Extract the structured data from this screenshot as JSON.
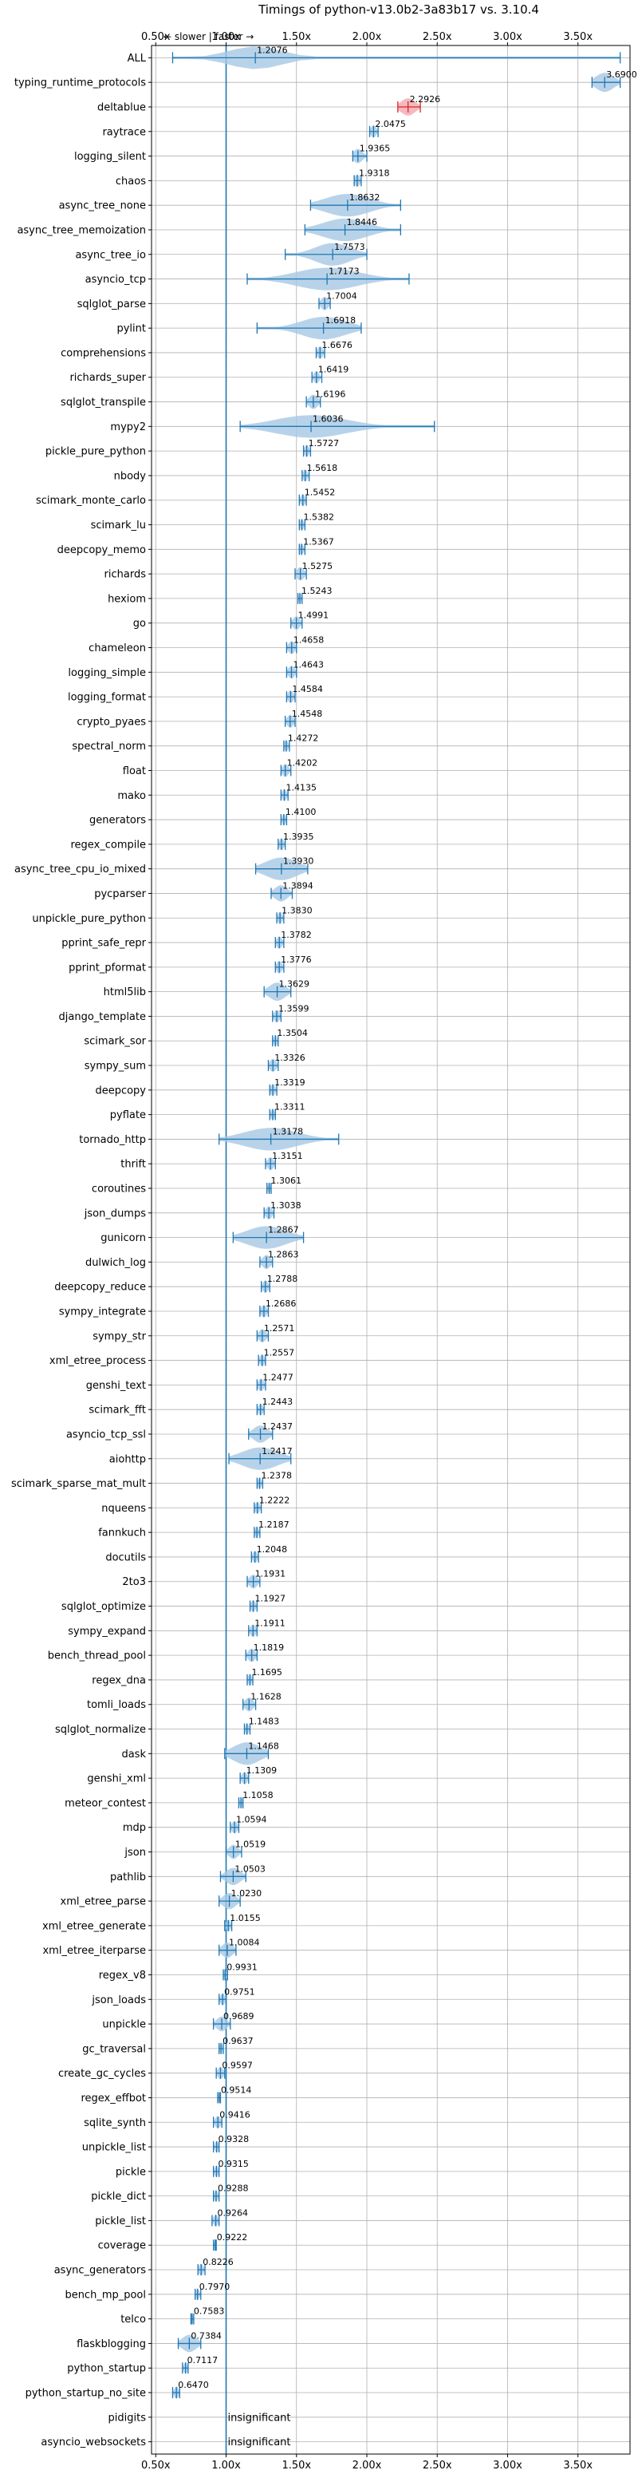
{
  "chart_data": {
    "type": "violin",
    "title": "Timings of python-v13.0b2-3a83b17 vs. 3.10.4",
    "xlabel": "",
    "ylabel": "",
    "direction_note": "← slower | faster →",
    "xlim": [
      0.47,
      3.87
    ],
    "xticks": [
      0.5,
      1.0,
      1.5,
      2.0,
      2.5,
      3.0,
      3.5
    ],
    "xtick_labels": [
      "0.50x",
      "1.00x",
      "1.50x",
      "2.00x",
      "2.50x",
      "3.00x",
      "3.50x"
    ],
    "reference_line": 1.0,
    "grid": true,
    "insignificant_label": "insignificant",
    "benchmarks": [
      {
        "name": "ALL",
        "value": 1.2076,
        "label": "1.2076",
        "min": 0.62,
        "max": 3.8,
        "spread": 0.3
      },
      {
        "name": "typing_runtime_protocols",
        "value": 3.69,
        "label": "3.6900",
        "min": 3.6,
        "max": 3.8,
        "spread": 0.1
      },
      {
        "name": "deltablue",
        "value": 2.2926,
        "label": "2.2926",
        "min": 2.22,
        "max": 2.38,
        "spread": 0.08
      },
      {
        "name": "raytrace",
        "value": 2.0475,
        "label": "2.0475",
        "min": 2.02,
        "max": 2.08,
        "spread": 0.03
      },
      {
        "name": "logging_silent",
        "value": 1.9365,
        "label": "1.9365",
        "min": 1.9,
        "max": 2.0,
        "spread": 0.05
      },
      {
        "name": "chaos",
        "value": 1.9318,
        "label": "1.9318",
        "min": 1.91,
        "max": 1.96,
        "spread": 0.03
      },
      {
        "name": "async_tree_none",
        "value": 1.8632,
        "label": "1.8632",
        "min": 1.6,
        "max": 2.24,
        "spread": 0.25
      },
      {
        "name": "async_tree_memoization",
        "value": 1.8446,
        "label": "1.8446",
        "min": 1.56,
        "max": 2.24,
        "spread": 0.25
      },
      {
        "name": "async_tree_io",
        "value": 1.7573,
        "label": "1.7573",
        "min": 1.42,
        "max": 2.0,
        "spread": 0.2
      },
      {
        "name": "asyncio_tcp",
        "value": 1.7173,
        "label": "1.7173",
        "min": 1.15,
        "max": 2.3,
        "spread": 0.35
      },
      {
        "name": "sqlglot_parse",
        "value": 1.7004,
        "label": "1.7004",
        "min": 1.66,
        "max": 1.74,
        "spread": 0.04
      },
      {
        "name": "pylint",
        "value": 1.6918,
        "label": "1.6918",
        "min": 1.22,
        "max": 1.96,
        "spread": 0.25
      },
      {
        "name": "comprehensions",
        "value": 1.6676,
        "label": "1.6676",
        "min": 1.64,
        "max": 1.7,
        "spread": 0.03
      },
      {
        "name": "richards_super",
        "value": 1.6419,
        "label": "1.6419",
        "min": 1.61,
        "max": 1.68,
        "spread": 0.03
      },
      {
        "name": "sqlglot_transpile",
        "value": 1.6196,
        "label": "1.6196",
        "min": 1.57,
        "max": 1.67,
        "spread": 0.05
      },
      {
        "name": "mypy2",
        "value": 1.6036,
        "label": "1.6036",
        "min": 1.1,
        "max": 2.48,
        "spread": 0.4
      },
      {
        "name": "pickle_pure_python",
        "value": 1.5727,
        "label": "1.5727",
        "min": 1.55,
        "max": 1.6,
        "spread": 0.025
      },
      {
        "name": "nbody",
        "value": 1.5618,
        "label": "1.5618",
        "min": 1.54,
        "max": 1.59,
        "spread": 0.025
      },
      {
        "name": "scimark_monte_carlo",
        "value": 1.5452,
        "label": "1.5452",
        "min": 1.52,
        "max": 1.57,
        "spread": 0.025
      },
      {
        "name": "scimark_lu",
        "value": 1.5382,
        "label": "1.5382",
        "min": 1.52,
        "max": 1.56,
        "spread": 0.02
      },
      {
        "name": "deepcopy_memo",
        "value": 1.5367,
        "label": "1.5367",
        "min": 1.52,
        "max": 1.56,
        "spread": 0.02
      },
      {
        "name": "richards",
        "value": 1.5275,
        "label": "1.5275",
        "min": 1.49,
        "max": 1.57,
        "spread": 0.04
      },
      {
        "name": "hexiom",
        "value": 1.5243,
        "label": "1.5243",
        "min": 1.51,
        "max": 1.54,
        "spread": 0.015
      },
      {
        "name": "go",
        "value": 1.4991,
        "label": "1.4991",
        "min": 1.46,
        "max": 1.54,
        "spread": 0.04
      },
      {
        "name": "chameleon",
        "value": 1.4658,
        "label": "1.4658",
        "min": 1.43,
        "max": 1.5,
        "spread": 0.035
      },
      {
        "name": "logging_simple",
        "value": 1.4643,
        "label": "1.4643",
        "min": 1.43,
        "max": 1.5,
        "spread": 0.035
      },
      {
        "name": "logging_format",
        "value": 1.4584,
        "label": "1.4584",
        "min": 1.43,
        "max": 1.49,
        "spread": 0.03
      },
      {
        "name": "crypto_pyaes",
        "value": 1.4548,
        "label": "1.4548",
        "min": 1.42,
        "max": 1.49,
        "spread": 0.035
      },
      {
        "name": "spectral_norm",
        "value": 1.4272,
        "label": "1.4272",
        "min": 1.41,
        "max": 1.45,
        "spread": 0.02
      },
      {
        "name": "float",
        "value": 1.4202,
        "label": "1.4202",
        "min": 1.39,
        "max": 1.46,
        "spread": 0.035
      },
      {
        "name": "mako",
        "value": 1.4135,
        "label": "1.4135",
        "min": 1.39,
        "max": 1.44,
        "spread": 0.025
      },
      {
        "name": "generators",
        "value": 1.41,
        "label": "1.4100",
        "min": 1.39,
        "max": 1.43,
        "spread": 0.02
      },
      {
        "name": "regex_compile",
        "value": 1.3935,
        "label": "1.3935",
        "min": 1.37,
        "max": 1.42,
        "spread": 0.025
      },
      {
        "name": "async_tree_cpu_io_mixed",
        "value": 1.393,
        "label": "1.3930",
        "min": 1.21,
        "max": 1.58,
        "spread": 0.18
      },
      {
        "name": "pycparser",
        "value": 1.3894,
        "label": "1.3894",
        "min": 1.32,
        "max": 1.47,
        "spread": 0.07
      },
      {
        "name": "unpickle_pure_python",
        "value": 1.383,
        "label": "1.3830",
        "min": 1.36,
        "max": 1.41,
        "spread": 0.025
      },
      {
        "name": "pprint_safe_repr",
        "value": 1.3782,
        "label": "1.3782",
        "min": 1.35,
        "max": 1.41,
        "spread": 0.03
      },
      {
        "name": "pprint_pformat",
        "value": 1.3776,
        "label": "1.3776",
        "min": 1.35,
        "max": 1.41,
        "spread": 0.03
      },
      {
        "name": "html5lib",
        "value": 1.3629,
        "label": "1.3629",
        "min": 1.27,
        "max": 1.46,
        "spread": 0.09
      },
      {
        "name": "django_template",
        "value": 1.3599,
        "label": "1.3599",
        "min": 1.33,
        "max": 1.39,
        "spread": 0.03
      },
      {
        "name": "scimark_sor",
        "value": 1.3504,
        "label": "1.3504",
        "min": 1.33,
        "max": 1.37,
        "spread": 0.02
      },
      {
        "name": "sympy_sum",
        "value": 1.3326,
        "label": "1.3326",
        "min": 1.3,
        "max": 1.37,
        "spread": 0.035
      },
      {
        "name": "deepcopy",
        "value": 1.3319,
        "label": "1.3319",
        "min": 1.31,
        "max": 1.36,
        "spread": 0.025
      },
      {
        "name": "pyflate",
        "value": 1.3311,
        "label": "1.3311",
        "min": 1.31,
        "max": 1.35,
        "spread": 0.02
      },
      {
        "name": "tornado_http",
        "value": 1.3178,
        "label": "1.3178",
        "min": 0.95,
        "max": 1.8,
        "spread": 0.3
      },
      {
        "name": "thrift",
        "value": 1.3151,
        "label": "1.3151",
        "min": 1.28,
        "max": 1.35,
        "spread": 0.035
      },
      {
        "name": "coroutines",
        "value": 1.3061,
        "label": "1.3061",
        "min": 1.29,
        "max": 1.32,
        "spread": 0.015
      },
      {
        "name": "json_dumps",
        "value": 1.3038,
        "label": "1.3038",
        "min": 1.27,
        "max": 1.34,
        "spread": 0.035
      },
      {
        "name": "gunicorn",
        "value": 1.2867,
        "label": "1.2867",
        "min": 1.05,
        "max": 1.55,
        "spread": 0.22
      },
      {
        "name": "dulwich_log",
        "value": 1.2863,
        "label": "1.2863",
        "min": 1.24,
        "max": 1.33,
        "spread": 0.045
      },
      {
        "name": "deepcopy_reduce",
        "value": 1.2788,
        "label": "1.2788",
        "min": 1.25,
        "max": 1.31,
        "spread": 0.03
      },
      {
        "name": "sympy_integrate",
        "value": 1.2686,
        "label": "1.2686",
        "min": 1.24,
        "max": 1.3,
        "spread": 0.03
      },
      {
        "name": "sympy_str",
        "value": 1.2571,
        "label": "1.2571",
        "min": 1.22,
        "max": 1.3,
        "spread": 0.04
      },
      {
        "name": "xml_etree_process",
        "value": 1.2557,
        "label": "1.2557",
        "min": 1.23,
        "max": 1.28,
        "spread": 0.025
      },
      {
        "name": "genshi_text",
        "value": 1.2477,
        "label": "1.2477",
        "min": 1.22,
        "max": 1.28,
        "spread": 0.03
      },
      {
        "name": "scimark_fft",
        "value": 1.2443,
        "label": "1.2443",
        "min": 1.22,
        "max": 1.27,
        "spread": 0.025
      },
      {
        "name": "asyncio_tcp_ssl",
        "value": 1.2437,
        "label": "1.2437",
        "min": 1.16,
        "max": 1.33,
        "spread": 0.08
      },
      {
        "name": "aiohttp",
        "value": 1.2417,
        "label": "1.2417",
        "min": 1.02,
        "max": 1.46,
        "spread": 0.2
      },
      {
        "name": "scimark_sparse_mat_mult",
        "value": 1.2378,
        "label": "1.2378",
        "min": 1.22,
        "max": 1.26,
        "spread": 0.02
      },
      {
        "name": "nqueens",
        "value": 1.2222,
        "label": "1.2222",
        "min": 1.2,
        "max": 1.25,
        "spread": 0.025
      },
      {
        "name": "fannkuch",
        "value": 1.2187,
        "label": "1.2187",
        "min": 1.2,
        "max": 1.24,
        "spread": 0.02
      },
      {
        "name": "docutils",
        "value": 1.2048,
        "label": "1.2048",
        "min": 1.18,
        "max": 1.23,
        "spread": 0.025
      },
      {
        "name": "2to3",
        "value": 1.1931,
        "label": "1.1931",
        "min": 1.15,
        "max": 1.24,
        "spread": 0.045
      },
      {
        "name": "sqlglot_optimize",
        "value": 1.1927,
        "label": "1.1927",
        "min": 1.17,
        "max": 1.22,
        "spread": 0.025
      },
      {
        "name": "sympy_expand",
        "value": 1.1911,
        "label": "1.1911",
        "min": 1.16,
        "max": 1.22,
        "spread": 0.03
      },
      {
        "name": "bench_thread_pool",
        "value": 1.1819,
        "label": "1.1819",
        "min": 1.14,
        "max": 1.22,
        "spread": 0.04
      },
      {
        "name": "regex_dna",
        "value": 1.1695,
        "label": "1.1695",
        "min": 1.15,
        "max": 1.19,
        "spread": 0.02
      },
      {
        "name": "tomli_loads",
        "value": 1.1628,
        "label": "1.1628",
        "min": 1.12,
        "max": 1.21,
        "spread": 0.045
      },
      {
        "name": "sqlglot_normalize",
        "value": 1.1483,
        "label": "1.1483",
        "min": 1.13,
        "max": 1.17,
        "spread": 0.02
      },
      {
        "name": "dask",
        "value": 1.1468,
        "label": "1.1468",
        "min": 0.99,
        "max": 1.3,
        "spread": 0.15
      },
      {
        "name": "genshi_xml",
        "value": 1.1309,
        "label": "1.1309",
        "min": 1.1,
        "max": 1.16,
        "spread": 0.03
      },
      {
        "name": "meteor_contest",
        "value": 1.1058,
        "label": "1.1058",
        "min": 1.09,
        "max": 1.12,
        "spread": 0.015
      },
      {
        "name": "mdp",
        "value": 1.0594,
        "label": "1.0594",
        "min": 1.03,
        "max": 1.09,
        "spread": 0.03
      },
      {
        "name": "json",
        "value": 1.0519,
        "label": "1.0519",
        "min": 1.0,
        "max": 1.11,
        "spread": 0.05
      },
      {
        "name": "pathlib",
        "value": 1.0503,
        "label": "1.0503",
        "min": 0.96,
        "max": 1.14,
        "spread": 0.08
      },
      {
        "name": "xml_etree_parse",
        "value": 1.023,
        "label": "1.0230",
        "min": 0.95,
        "max": 1.1,
        "spread": 0.07
      },
      {
        "name": "xml_etree_generate",
        "value": 1.0155,
        "label": "1.0155",
        "min": 0.99,
        "max": 1.04,
        "spread": 0.025
      },
      {
        "name": "xml_etree_iterparse",
        "value": 1.0084,
        "label": "1.0084",
        "min": 0.95,
        "max": 1.07,
        "spread": 0.06
      },
      {
        "name": "regex_v8",
        "value": 0.9931,
        "label": "0.9931",
        "min": 0.98,
        "max": 1.01,
        "spread": 0.015
      },
      {
        "name": "json_loads",
        "value": 0.9751,
        "label": "0.9751",
        "min": 0.95,
        "max": 1.0,
        "spread": 0.025
      },
      {
        "name": "unpickle",
        "value": 0.9689,
        "label": "0.9689",
        "min": 0.91,
        "max": 1.03,
        "spread": 0.055
      },
      {
        "name": "gc_traversal",
        "value": 0.9637,
        "label": "0.9637",
        "min": 0.95,
        "max": 0.98,
        "spread": 0.015
      },
      {
        "name": "create_gc_cycles",
        "value": 0.9597,
        "label": "0.9597",
        "min": 0.93,
        "max": 0.99,
        "spread": 0.03
      },
      {
        "name": "regex_effbot",
        "value": 0.9514,
        "label": "0.9514",
        "min": 0.94,
        "max": 0.96,
        "spread": 0.01
      },
      {
        "name": "sqlite_synth",
        "value": 0.9416,
        "label": "0.9416",
        "min": 0.91,
        "max": 0.97,
        "spread": 0.03
      },
      {
        "name": "unpickle_list",
        "value": 0.9328,
        "label": "0.9328",
        "min": 0.91,
        "max": 0.95,
        "spread": 0.02
      },
      {
        "name": "pickle",
        "value": 0.9315,
        "label": "0.9315",
        "min": 0.91,
        "max": 0.95,
        "spread": 0.02
      },
      {
        "name": "pickle_dict",
        "value": 0.9288,
        "label": "0.9288",
        "min": 0.91,
        "max": 0.95,
        "spread": 0.02
      },
      {
        "name": "pickle_list",
        "value": 0.9264,
        "label": "0.9264",
        "min": 0.9,
        "max": 0.95,
        "spread": 0.025
      },
      {
        "name": "coverage",
        "value": 0.9222,
        "label": "0.9222",
        "min": 0.91,
        "max": 0.93,
        "spread": 0.01
      },
      {
        "name": "async_generators",
        "value": 0.8226,
        "label": "0.8226",
        "min": 0.8,
        "max": 0.85,
        "spread": 0.025
      },
      {
        "name": "bench_mp_pool",
        "value": 0.797,
        "label": "0.7970",
        "min": 0.78,
        "max": 0.82,
        "spread": 0.02
      },
      {
        "name": "telco",
        "value": 0.7583,
        "label": "0.7583",
        "min": 0.75,
        "max": 0.77,
        "spread": 0.01
      },
      {
        "name": "flaskblogging",
        "value": 0.7384,
        "label": "0.7384",
        "min": 0.66,
        "max": 0.82,
        "spread": 0.08
      },
      {
        "name": "python_startup",
        "value": 0.7117,
        "label": "0.7117",
        "min": 0.69,
        "max": 0.73,
        "spread": 0.02
      },
      {
        "name": "python_startup_no_site",
        "value": 0.647,
        "label": "0.6470",
        "min": 0.62,
        "max": 0.67,
        "spread": 0.025
      },
      {
        "name": "pidigits",
        "value": null,
        "label": "insignificant"
      },
      {
        "name": "asyncio_websockets",
        "value": null,
        "label": "insignificant"
      }
    ],
    "colors": {
      "violin": "#1f77b4",
      "violin_fill": "#a6c8e4",
      "highlight_fill": "#f4a6ae",
      "highlight_edge": "#d62728",
      "reference_line": "#1f77b4",
      "grid": "#b0b0b0",
      "text": "#000000"
    },
    "highlighted": [
      "deltablue"
    ]
  }
}
